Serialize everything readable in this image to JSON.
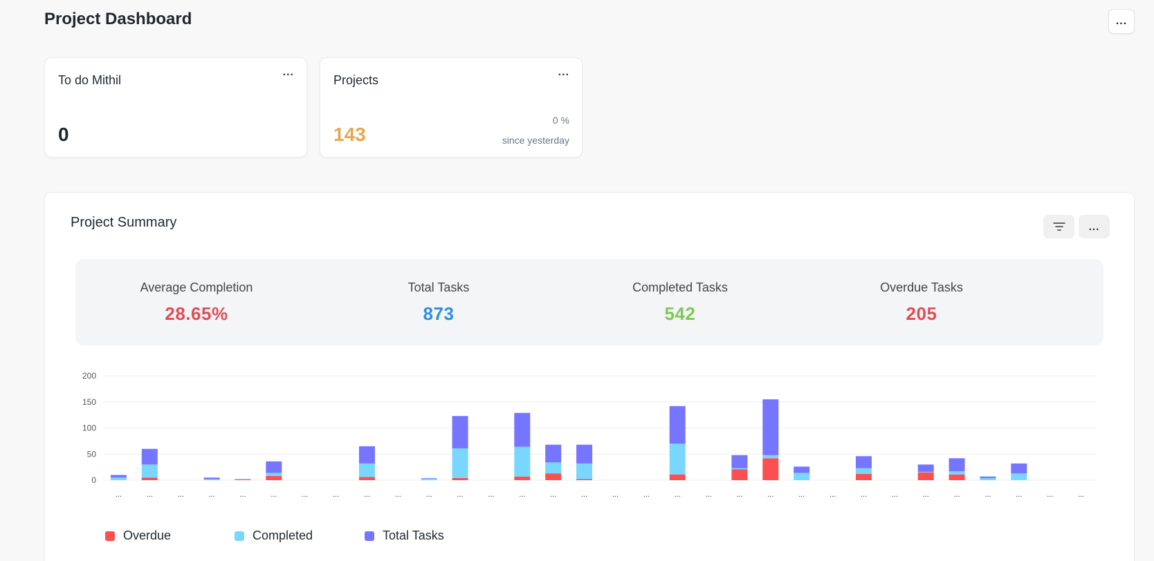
{
  "page": {
    "title": "Project Dashboard",
    "menu_label": "..."
  },
  "cards": [
    {
      "title": "To do Mithil",
      "value": "0",
      "value_color": "#1f272e",
      "menu": "..."
    },
    {
      "title": "Projects",
      "value": "143",
      "value_color": "#e8a651",
      "menu": "...",
      "percent": "0 %",
      "since": "since yesterday"
    }
  ],
  "summary": {
    "title": "Project Summary",
    "filter_icon": "filter-icon",
    "menu_label": "...",
    "stats": [
      {
        "label": "Average Completion",
        "value": "28.65%",
        "color": "#de4e57"
      },
      {
        "label": "Total Tasks",
        "value": "873",
        "color": "#2f8fde"
      },
      {
        "label": "Completed Tasks",
        "value": "542",
        "color": "#7cc957"
      },
      {
        "label": "Overdue Tasks",
        "value": "205",
        "color": "#de4e57"
      }
    ]
  },
  "chart_data": {
    "type": "bar",
    "stacked": true,
    "ylim": [
      0,
      200
    ],
    "y_ticks": [
      "0",
      "50",
      "100",
      "150",
      "200"
    ],
    "categories": [
      "...",
      "...",
      "...",
      "...",
      "...",
      "...",
      "...",
      "...",
      "...",
      "...",
      "...",
      "...",
      "...",
      "...",
      "...",
      "...",
      "...",
      "...",
      "...",
      "...",
      "...",
      "...",
      "...",
      "...",
      "...",
      "...",
      "...",
      "...",
      "...",
      "...",
      "...",
      "..."
    ],
    "series": [
      {
        "name": "Overdue",
        "color": "#fc4f51",
        "values": [
          0,
          5,
          0,
          0,
          1,
          8,
          0,
          0,
          6,
          0,
          0,
          4,
          0,
          7,
          13,
          2,
          0,
          0,
          11,
          0,
          21,
          42,
          0,
          0,
          12,
          0,
          15,
          11,
          0,
          0,
          0,
          0
        ]
      },
      {
        "name": "Completed",
        "color": "#78d6ff",
        "values": [
          5,
          25,
          0,
          2,
          0,
          6,
          0,
          0,
          26,
          0,
          3,
          57,
          0,
          57,
          21,
          30,
          0,
          0,
          59,
          0,
          2,
          6,
          14,
          0,
          11,
          0,
          1,
          6,
          4,
          13,
          0,
          0
        ]
      },
      {
        "name": "Total Tasks",
        "color": "#7575ff",
        "values": [
          5,
          30,
          0,
          3,
          1,
          22,
          0,
          0,
          33,
          0,
          1,
          62,
          0,
          65,
          34,
          36,
          0,
          0,
          72,
          0,
          25,
          107,
          12,
          0,
          23,
          0,
          14,
          25,
          3,
          19,
          0,
          0
        ]
      }
    ]
  }
}
